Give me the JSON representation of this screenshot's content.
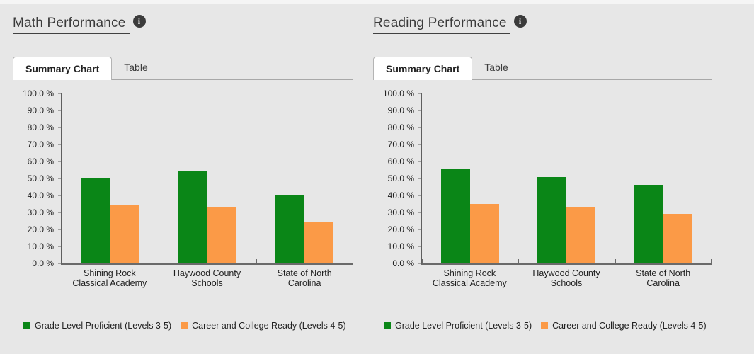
{
  "icons": {
    "info_glyph": "i"
  },
  "colors": {
    "green": "#0a8617",
    "orange": "#fb9a47",
    "background": "#e7e7e7"
  },
  "panels": [
    {
      "title": "Math Performance",
      "tabs": [
        {
          "label": "Summary Chart",
          "active": true
        },
        {
          "label": "Table",
          "active": false
        }
      ]
    },
    {
      "title": "Reading Performance",
      "tabs": [
        {
          "label": "Summary Chart",
          "active": true
        },
        {
          "label": "Table",
          "active": false
        }
      ]
    }
  ],
  "chart_data": [
    {
      "type": "bar",
      "title": "Math Performance",
      "categories": [
        "Shining Rock Classical Academy",
        "Haywood County Schools",
        "State of North Carolina"
      ],
      "series": [
        {
          "name": "Grade Level Proficient (Levels 3-5)",
          "color": "#0a8617",
          "values": [
            50,
            54,
            40
          ]
        },
        {
          "name": "Career and College Ready (Levels 4-5)",
          "color": "#fb9a47",
          "values": [
            34,
            33,
            24
          ]
        }
      ],
      "ylim": [
        0,
        100
      ],
      "ytick_step": 10,
      "ytick_labels": [
        "100.0 %",
        "90.0 %",
        "80.0 %",
        "70.0 %",
        "60.0 %",
        "50.0 %",
        "40.0 %",
        "30.0 %",
        "20.0 %",
        "10.0 %",
        "0.0 %"
      ],
      "grid": false,
      "legend_position": "bottom"
    },
    {
      "type": "bar",
      "title": "Reading Performance",
      "categories": [
        "Shining Rock Classical Academy",
        "Haywood County Schools",
        "State of North Carolina"
      ],
      "series": [
        {
          "name": "Grade Level Proficient (Levels 3-5)",
          "color": "#0a8617",
          "values": [
            56,
            51,
            46
          ]
        },
        {
          "name": "Career and College Ready (Levels 4-5)",
          "color": "#fb9a47",
          "values": [
            35,
            33,
            29
          ]
        }
      ],
      "ylim": [
        0,
        100
      ],
      "ytick_step": 10,
      "ytick_labels": [
        "100.0 %",
        "90.0 %",
        "80.0 %",
        "70.0 %",
        "60.0 %",
        "50.0 %",
        "40.0 %",
        "30.0 %",
        "20.0 %",
        "10.0 %",
        "0.0 %"
      ],
      "grid": false,
      "legend_position": "bottom"
    }
  ]
}
